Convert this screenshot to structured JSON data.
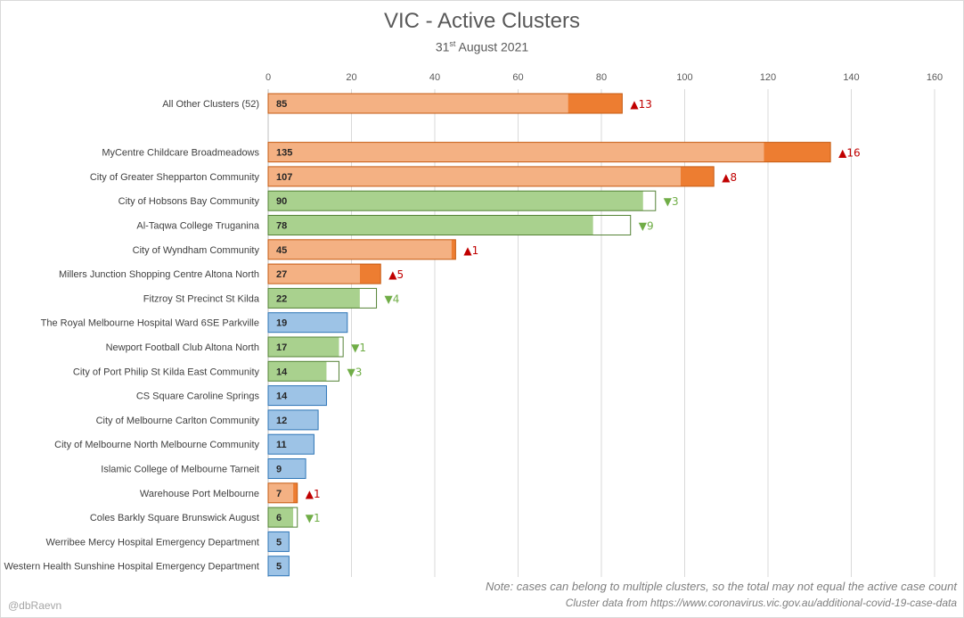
{
  "header": {
    "title": "VIC - Active Clusters",
    "subtitle_day": "31",
    "subtitle_suffix": "st",
    "subtitle_rest": " August 2021"
  },
  "footer": {
    "note": "Note: cases can belong to multiple clusters, so the total may not equal the active case count",
    "source": "Cluster data from https://www.coronavirus.vic.gov.au/additional-covid-19-case-data",
    "credit": "@dbRaevn"
  },
  "colors": {
    "increase_base": "#f4b183",
    "increase_change": "#ed7d31",
    "increase_border": "#c55a11",
    "increase_text": "#c00000",
    "decrease_base": "#a9d18e",
    "decrease_border": "#548235",
    "decrease_text": "#70ad47",
    "nochange_base": "#9dc3e6",
    "nochange_border": "#2e75b6",
    "axis_text": "#595959",
    "gridline": "#d9d9d9"
  },
  "chart_data": {
    "type": "bar",
    "orientation": "horizontal",
    "xlim": [
      0,
      160
    ],
    "xticks": [
      0,
      20,
      40,
      60,
      80,
      100,
      120,
      140,
      160
    ],
    "grid": true,
    "categories": [
      "All Other Clusters (52)",
      "",
      "MyCentre Childcare Broadmeadows",
      "City of Greater Shepparton Community",
      "City of Hobsons Bay Community",
      "Al-Taqwa College Truganina",
      "City of Wyndham Community",
      "Millers Junction Shopping Centre Altona North",
      "Fitzroy St Precinct St Kilda",
      "The Royal Melbourne Hospital Ward 6SE Parkville",
      "Newport Football Club Altona North",
      "City of Port Philip St Kilda East Community",
      "CS Square Caroline Springs",
      "City of Melbourne Carlton Community",
      "City of Melbourne North Melbourne Community",
      "Islamic College of Melbourne Tarneit",
      "Warehouse Port Melbourne",
      "Coles Barkly Square Brunswick August",
      "Werribee Mercy Hospital Emergency Department",
      "Western Health Sunshine Hospital Emergency Department"
    ],
    "series": [
      {
        "values": [
          85,
          null,
          135,
          107,
          90,
          78,
          45,
          27,
          22,
          19,
          17,
          14,
          14,
          12,
          11,
          9,
          7,
          6,
          5,
          5
        ]
      },
      {
        "values": [
          13,
          null,
          16,
          8,
          -3,
          -9,
          1,
          5,
          -4,
          0,
          -1,
          -3,
          0,
          0,
          0,
          0,
          1,
          -1,
          0,
          0
        ]
      }
    ],
    "change_labels": [
      "▲13",
      "",
      "▲16",
      "▲8",
      "▼3",
      "▼9",
      "▲1",
      "▲5",
      "▼4",
      "",
      "▼1",
      "▼3",
      "",
      "",
      "",
      "",
      "▲1",
      "▼1",
      "",
      ""
    ]
  }
}
